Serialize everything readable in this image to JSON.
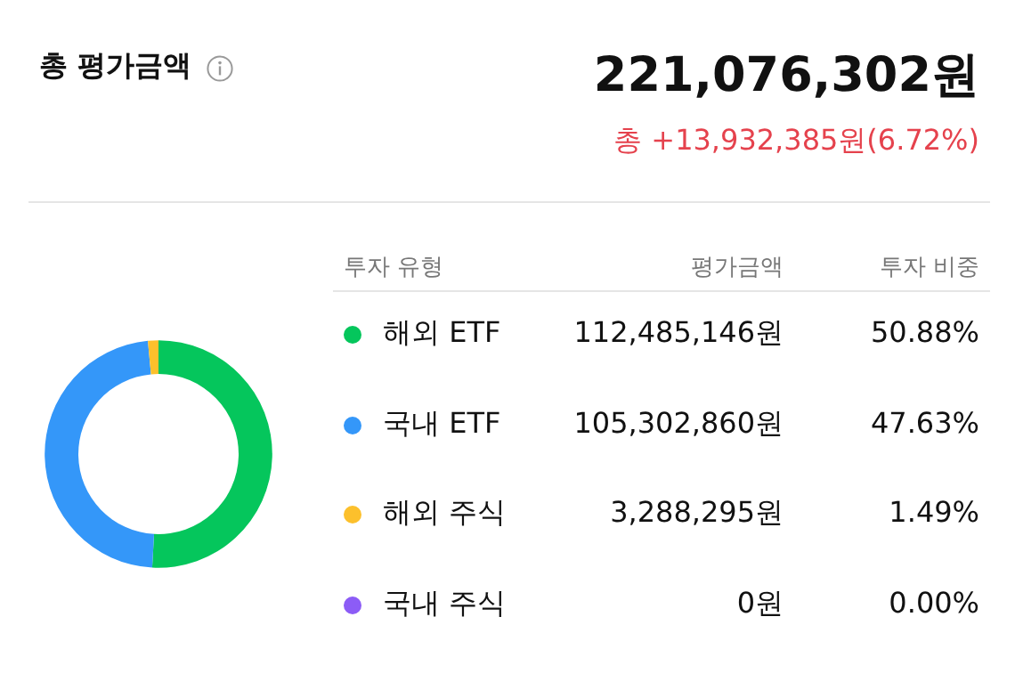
{
  "chart_data": {
    "type": "donut",
    "title": "총 평가금액",
    "subtitle": "221,076,302원",
    "categories": [
      "해외 ETF",
      "국내 ETF",
      "해외 주식",
      "국내 주식"
    ],
    "values": [
      112485146,
      105302860,
      3288295,
      0
    ],
    "colors": [
      "#05c65c",
      "#3497f9",
      "#fcc02c",
      "#8c5cf6"
    ],
    "value_labels": [
      "112,485,146원",
      "105,302,860원",
      "3,288,295원",
      "0원"
    ],
    "annotations": [
      "총 +13,932,385원(6.72%)",
      "투자 유형",
      "평가금액",
      "투자 비중",
      "50.88%",
      "47.63%",
      "1.49%",
      "0.00%"
    ],
    "legend": "right"
  }
}
